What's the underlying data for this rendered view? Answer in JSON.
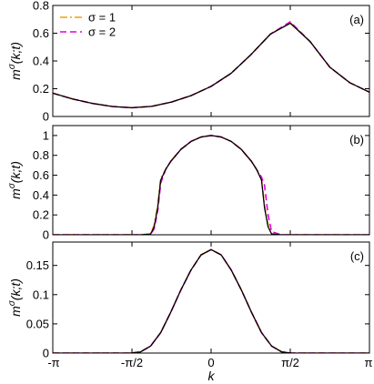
{
  "chart_data": [
    {
      "type": "line",
      "panel_label": "(a)",
      "ylabel": "m^σ(k;t)",
      "ylabel_main": "m",
      "ylabel_sup": "σ",
      "ylabel_args": "(k;t)",
      "xlim": [
        -3.14159,
        3.14159
      ],
      "ylim": [
        0,
        0.8
      ],
      "yticks": [
        0,
        0.2,
        0.4,
        0.6,
        0.8
      ],
      "ytick_labels": [
        "0",
        "0.2",
        "0.4",
        "0.6",
        "0.8"
      ],
      "legend": {
        "position": "top-left"
      },
      "series": [
        {
          "name": "σ = 1",
          "color": "#f5a000",
          "style": "dashdot",
          "x": [
            -3.1416,
            -2.7489,
            -2.3562,
            -1.9635,
            -1.5708,
            -1.1781,
            -0.7854,
            -0.3927,
            0,
            0.3927,
            0.7854,
            1.1781,
            1.5708,
            1.9635,
            2.3562,
            2.7489,
            3.1416
          ],
          "y": [
            0.168,
            0.126,
            0.094,
            0.072,
            0.063,
            0.073,
            0.104,
            0.151,
            0.217,
            0.31,
            0.444,
            0.594,
            0.676,
            0.54,
            0.355,
            0.244,
            0.175
          ]
        },
        {
          "name": "σ = 2",
          "color": "#e000e0",
          "style": "dashed",
          "x": [
            -3.1416,
            -2.7489,
            -2.3562,
            -1.9635,
            -1.5708,
            -1.1781,
            -0.7854,
            -0.3927,
            0,
            0.3927,
            0.7854,
            1.1781,
            1.5708,
            1.9635,
            2.3562,
            2.7489,
            3.1416
          ],
          "y": [
            0.168,
            0.126,
            0.094,
            0.072,
            0.063,
            0.073,
            0.104,
            0.151,
            0.217,
            0.31,
            0.444,
            0.594,
            0.682,
            0.54,
            0.355,
            0.244,
            0.175
          ]
        },
        {
          "name": "",
          "color": "#000000",
          "style": "solid",
          "x": [
            -3.1416,
            -2.7489,
            -2.3562,
            -1.9635,
            -1.5708,
            -1.1781,
            -0.7854,
            -0.3927,
            0,
            0.3927,
            0.7854,
            1.1781,
            1.5708,
            1.9635,
            2.3562,
            2.7489,
            3.1416
          ],
          "y": [
            0.168,
            0.126,
            0.094,
            0.072,
            0.063,
            0.073,
            0.104,
            0.151,
            0.217,
            0.31,
            0.444,
            0.594,
            0.672,
            0.54,
            0.355,
            0.244,
            0.175
          ]
        }
      ]
    },
    {
      "type": "line",
      "panel_label": "(b)",
      "ylabel": "m^σ(k;t)",
      "ylabel_main": "m",
      "ylabel_sup": "σ",
      "ylabel_args": "(k;t)",
      "xlim": [
        -3.14159,
        3.14159
      ],
      "ylim": [
        0,
        1.1
      ],
      "yticks": [
        0,
        0.2,
        0.4,
        0.6,
        0.8,
        1
      ],
      "ytick_labels": [
        "0",
        "0.2",
        "0.4",
        "0.6",
        "0.8",
        "1"
      ],
      "series": [
        {
          "name": "σ = 1",
          "color": "#f5a000",
          "style": "dashdot",
          "x": [
            -3.1416,
            -1.4,
            -1.2,
            -1.13,
            -1.06,
            -1.0,
            -0.9,
            -0.8,
            -0.6,
            -0.4,
            -0.2,
            0,
            0.2,
            0.4,
            0.6,
            0.8,
            0.9,
            1.0,
            1.06,
            1.13,
            1.2,
            1.4,
            3.1416
          ],
          "y": [
            0,
            0,
            0.01,
            0.1,
            0.3,
            0.57,
            0.66,
            0.74,
            0.86,
            0.94,
            0.985,
            1.0,
            0.985,
            0.94,
            0.86,
            0.74,
            0.66,
            0.57,
            0.3,
            0.1,
            0.01,
            0,
            0
          ]
        },
        {
          "name": "σ = 2",
          "color": "#e000e0",
          "style": "dashed",
          "x": [
            -3.1416,
            -1.4,
            -1.2,
            -1.13,
            -1.06,
            -1.0,
            -0.9,
            -0.8,
            -0.6,
            -0.4,
            -0.2,
            0,
            0.2,
            0.4,
            0.6,
            0.8,
            0.9,
            1.0,
            1.06,
            1.13,
            1.2,
            1.4,
            3.1416
          ],
          "y": [
            0,
            0,
            0.005,
            0.06,
            0.24,
            0.52,
            0.66,
            0.74,
            0.86,
            0.94,
            0.985,
            1.0,
            0.985,
            0.94,
            0.86,
            0.74,
            0.66,
            0.58,
            0.5,
            0.2,
            0.03,
            0,
            0
          ]
        },
        {
          "name": "",
          "color": "#000000",
          "style": "solid",
          "x": [
            -3.1416,
            -1.4,
            -1.2,
            -1.13,
            -1.06,
            -1.0,
            -0.9,
            -0.8,
            -0.6,
            -0.4,
            -0.2,
            0,
            0.2,
            0.4,
            0.6,
            0.8,
            0.9,
            1.0,
            1.06,
            1.13,
            1.2,
            1.4,
            3.1416
          ],
          "y": [
            0,
            0,
            0.008,
            0.08,
            0.27,
            0.55,
            0.66,
            0.74,
            0.86,
            0.94,
            0.985,
            1.0,
            0.985,
            0.94,
            0.86,
            0.74,
            0.66,
            0.55,
            0.27,
            0.08,
            0.008,
            0,
            0
          ]
        }
      ]
    },
    {
      "type": "line",
      "panel_label": "(c)",
      "ylabel": "m^σ(k;t)",
      "ylabel_main": "m",
      "ylabel_sup": "σ",
      "ylabel_args": "(k;t)",
      "xlabel": "k",
      "xlim": [
        -3.14159,
        3.14159
      ],
      "ylim": [
        0,
        0.19
      ],
      "yticks": [
        0,
        0.05,
        0.1,
        0.15
      ],
      "ytick_labels": [
        "0",
        "0.05",
        "0.1",
        "0.15"
      ],
      "xticks": [
        -3.14159,
        -1.5708,
        0,
        1.5708,
        3.14159
      ],
      "xtick_labels": [
        "-π",
        "-π/2",
        "0",
        "π/2",
        "π"
      ],
      "series": [
        {
          "name": "σ = 1",
          "color": "#f5a000",
          "style": "dashdot",
          "x": [
            -3.1416,
            -1.6,
            -1.4,
            -1.2,
            -1.0,
            -0.8,
            -0.6,
            -0.4,
            -0.2,
            0,
            0.2,
            0.4,
            0.6,
            0.8,
            1.0,
            1.2,
            1.4,
            1.6,
            3.1416
          ],
          "y": [
            0,
            0,
            0.002,
            0.012,
            0.035,
            0.07,
            0.108,
            0.142,
            0.168,
            0.177,
            0.168,
            0.142,
            0.108,
            0.07,
            0.035,
            0.012,
            0.002,
            0,
            0
          ]
        },
        {
          "name": "σ = 2",
          "color": "#e000e0",
          "style": "dashed",
          "x": [
            -3.1416,
            -1.6,
            -1.4,
            -1.2,
            -1.0,
            -0.8,
            -0.6,
            -0.4,
            -0.2,
            0,
            0.2,
            0.4,
            0.6,
            0.8,
            1.0,
            1.2,
            1.4,
            1.6,
            3.1416
          ],
          "y": [
            0,
            0,
            0.002,
            0.012,
            0.035,
            0.07,
            0.108,
            0.142,
            0.168,
            0.177,
            0.168,
            0.142,
            0.108,
            0.07,
            0.035,
            0.012,
            0.002,
            0,
            0
          ]
        },
        {
          "name": "",
          "color": "#000000",
          "style": "solid",
          "x": [
            -3.1416,
            -1.6,
            -1.4,
            -1.2,
            -1.0,
            -0.8,
            -0.6,
            -0.4,
            -0.2,
            0,
            0.2,
            0.4,
            0.6,
            0.8,
            1.0,
            1.2,
            1.4,
            1.6,
            3.1416
          ],
          "y": [
            0,
            0,
            0.002,
            0.012,
            0.035,
            0.07,
            0.108,
            0.142,
            0.168,
            0.177,
            0.168,
            0.142,
            0.108,
            0.07,
            0.035,
            0.012,
            0.002,
            0,
            0
          ]
        }
      ]
    }
  ]
}
